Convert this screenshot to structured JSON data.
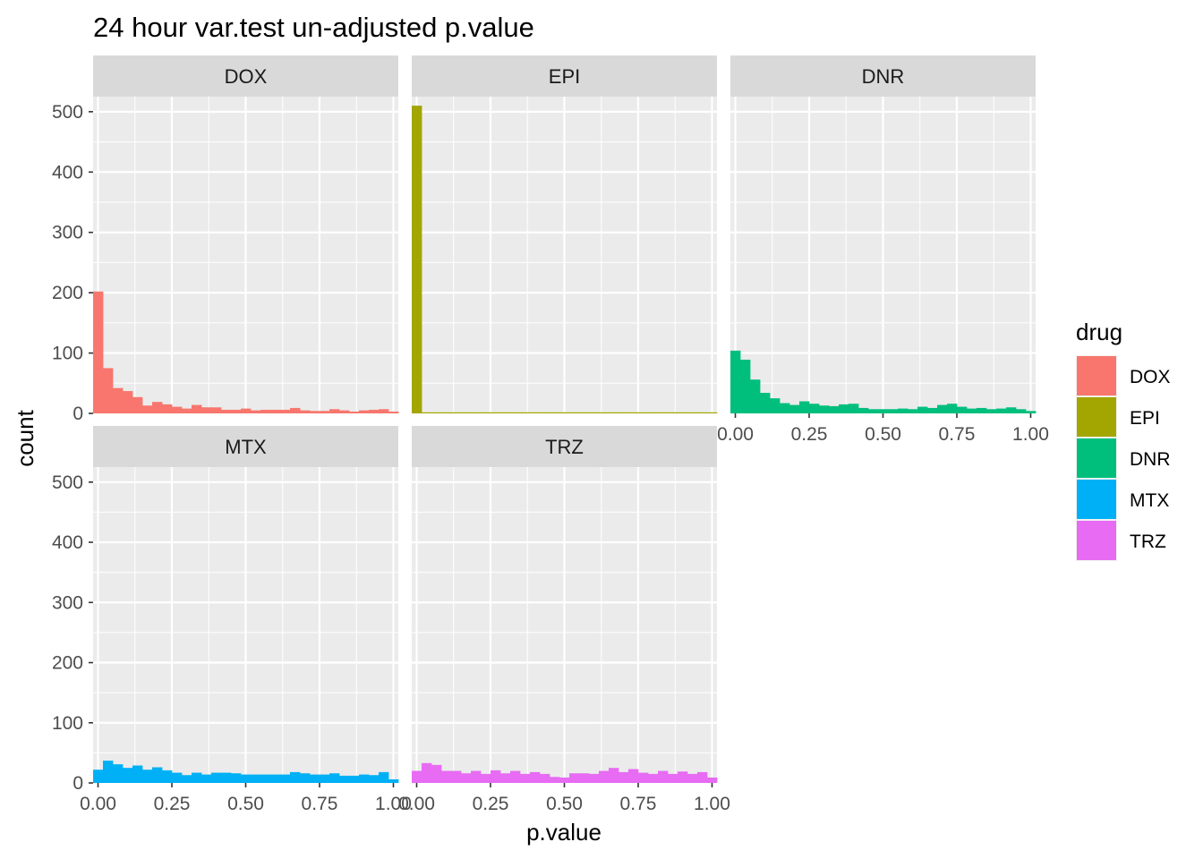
{
  "chart_data": {
    "type": "bar",
    "title": "24 hour var.test un-adjusted p.value",
    "xlabel": "p.value",
    "ylabel": "count",
    "xlim": [
      -0.0167,
      1.0167
    ],
    "ylim": [
      0,
      525
    ],
    "x_ticks": [
      0,
      0.25,
      0.5,
      0.75,
      1
    ],
    "x_tick_labels": [
      "0.00",
      "0.25",
      "0.50",
      "0.75",
      "1.00"
    ],
    "y_ticks": [
      0,
      100,
      200,
      300,
      400,
      500
    ],
    "y_tick_labels": [
      "0",
      "100",
      "200",
      "300",
      "400",
      "500"
    ],
    "grid": true,
    "bin_width": 0.0333,
    "bin_centers": [
      0.0,
      0.0333,
      0.0667,
      0.1,
      0.1333,
      0.1667,
      0.2,
      0.2333,
      0.2667,
      0.3,
      0.3333,
      0.3667,
      0.4,
      0.4333,
      0.4667,
      0.5,
      0.5333,
      0.5667,
      0.6,
      0.6333,
      0.6667,
      0.7,
      0.7333,
      0.7667,
      0.8,
      0.8333,
      0.8667,
      0.9,
      0.9333,
      0.9667,
      1.0
    ],
    "legend": {
      "title": "drug",
      "position": "right",
      "entries": [
        "DOX",
        "EPI",
        "DNR",
        "MTX",
        "TRZ"
      ]
    },
    "series": [
      {
        "name": "DOX",
        "color": "#F8766D",
        "values": [
          202,
          75,
          42,
          37,
          27,
          13,
          19,
          15,
          11,
          8,
          14,
          10,
          10,
          6,
          6,
          8,
          5,
          6,
          6,
          6,
          9,
          5,
          4,
          4,
          7,
          5,
          3,
          5,
          6,
          7,
          3
        ]
      },
      {
        "name": "EPI",
        "color": "#A3A500",
        "values": [
          510,
          1,
          1,
          1,
          1,
          1,
          1,
          1,
          1,
          1,
          1,
          1,
          1,
          1,
          1,
          1,
          1,
          1,
          1,
          1,
          1,
          1,
          1,
          1,
          1,
          1,
          1,
          1,
          1,
          1,
          1
        ]
      },
      {
        "name": "DNR",
        "color": "#00BF7D",
        "values": [
          104,
          89,
          56,
          34,
          25,
          17,
          14,
          20,
          16,
          13,
          12,
          15,
          16,
          9,
          7,
          7,
          7,
          8,
          7,
          11,
          9,
          14,
          16,
          11,
          8,
          9,
          7,
          8,
          10,
          7,
          4
        ]
      },
      {
        "name": "MTX",
        "color": "#00B0F6",
        "values": [
          22,
          37,
          31,
          25,
          29,
          22,
          26,
          21,
          17,
          13,
          17,
          14,
          17,
          17,
          16,
          14,
          14,
          14,
          14,
          14,
          18,
          16,
          14,
          14,
          16,
          12,
          12,
          14,
          13,
          18,
          6
        ]
      },
      {
        "name": "TRZ",
        "color": "#E76BF3",
        "values": [
          20,
          33,
          30,
          20,
          20,
          16,
          20,
          15,
          21,
          16,
          20,
          15,
          18,
          15,
          10,
          9,
          16,
          16,
          15,
          20,
          25,
          18,
          23,
          17,
          15,
          20,
          15,
          19,
          15,
          18,
          9
        ]
      }
    ]
  }
}
